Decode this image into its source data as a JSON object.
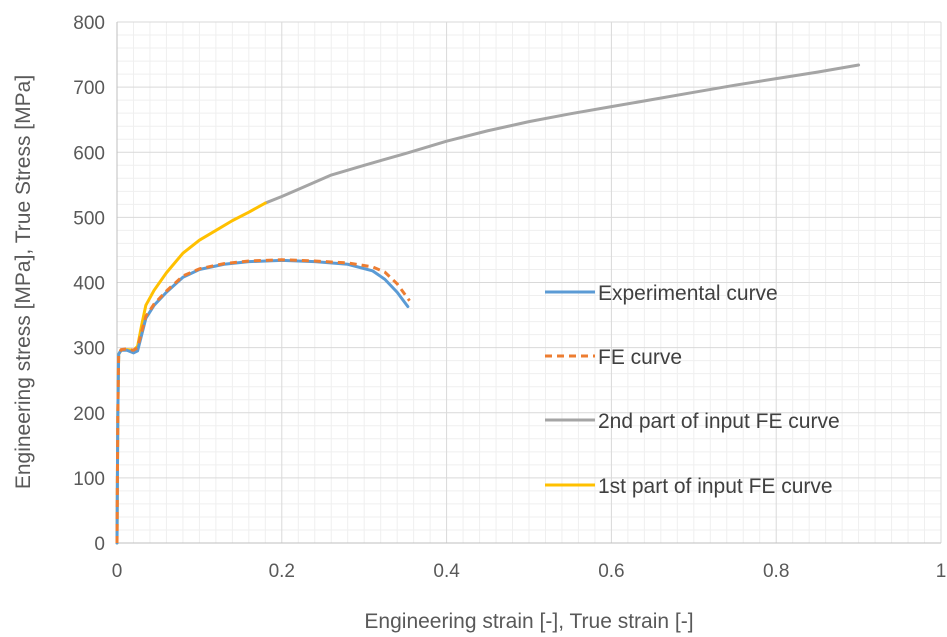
{
  "chart_data": {
    "type": "line",
    "title": "",
    "xlabel": "Engineering strain [-], True strain [-]",
    "ylabel": "Engineering stress [MPa], True Stress [MPa]",
    "xlim": [
      0,
      1
    ],
    "ylim": [
      0,
      800
    ],
    "x_ticks": [
      0,
      0.2,
      0.4,
      0.6,
      0.8,
      1
    ],
    "x_tick_labels": [
      "0",
      "0.2",
      "0.4",
      "0.6",
      "0.8",
      "1"
    ],
    "y_ticks": [
      0,
      100,
      200,
      300,
      400,
      500,
      600,
      700,
      800
    ],
    "y_tick_labels": [
      "0",
      "100",
      "200",
      "300",
      "400",
      "500",
      "600",
      "700",
      "800"
    ],
    "grid": {
      "major": true,
      "minor": true
    },
    "legend_position": "right-center",
    "series": [
      {
        "name": "Experimental curve",
        "color": "#5B9BD5",
        "style": "solid",
        "points": [
          [
            0,
            0
          ],
          [
            0.001,
            200
          ],
          [
            0.002,
            290
          ],
          [
            0.005,
            296
          ],
          [
            0.012,
            296
          ],
          [
            0.02,
            292
          ],
          [
            0.025,
            295
          ],
          [
            0.03,
            320
          ],
          [
            0.035,
            345
          ],
          [
            0.045,
            365
          ],
          [
            0.06,
            385
          ],
          [
            0.08,
            408
          ],
          [
            0.1,
            420
          ],
          [
            0.13,
            428
          ],
          [
            0.16,
            432
          ],
          [
            0.2,
            434
          ],
          [
            0.24,
            432
          ],
          [
            0.28,
            428
          ],
          [
            0.31,
            418
          ],
          [
            0.325,
            405
          ],
          [
            0.34,
            385
          ],
          [
            0.353,
            363
          ]
        ]
      },
      {
        "name": "FE curve",
        "color": "#ED7D31",
        "style": "dashed",
        "points": [
          [
            0,
            0
          ],
          [
            0.001,
            200
          ],
          [
            0.002,
            290
          ],
          [
            0.005,
            297
          ],
          [
            0.012,
            298
          ],
          [
            0.02,
            296
          ],
          [
            0.025,
            300
          ],
          [
            0.03,
            325
          ],
          [
            0.035,
            348
          ],
          [
            0.045,
            367
          ],
          [
            0.06,
            387
          ],
          [
            0.08,
            410
          ],
          [
            0.1,
            421
          ],
          [
            0.13,
            429
          ],
          [
            0.16,
            433
          ],
          [
            0.2,
            435
          ],
          [
            0.24,
            433
          ],
          [
            0.28,
            430
          ],
          [
            0.31,
            424
          ],
          [
            0.325,
            416
          ],
          [
            0.34,
            398
          ],
          [
            0.355,
            372
          ]
        ]
      },
      {
        "name": "2nd part of input FE curve",
        "color": "#A5A5A5",
        "style": "solid",
        "points": [
          [
            0.18,
            522
          ],
          [
            0.2,
            532
          ],
          [
            0.22,
            543
          ],
          [
            0.26,
            565
          ],
          [
            0.3,
            580
          ],
          [
            0.35,
            598
          ],
          [
            0.4,
            617
          ],
          [
            0.45,
            633
          ],
          [
            0.5,
            647
          ],
          [
            0.55,
            659
          ],
          [
            0.6,
            670
          ],
          [
            0.65,
            681
          ],
          [
            0.7,
            692
          ],
          [
            0.75,
            703
          ],
          [
            0.8,
            713
          ],
          [
            0.85,
            723
          ],
          [
            0.9,
            734
          ]
        ]
      },
      {
        "name": "1st part of input FE curve",
        "color": "#FFC000",
        "style": "solid",
        "points": [
          [
            0,
            0
          ],
          [
            0.001,
            200
          ],
          [
            0.002,
            290
          ],
          [
            0.005,
            296
          ],
          [
            0.012,
            297
          ],
          [
            0.02,
            296
          ],
          [
            0.025,
            302
          ],
          [
            0.03,
            335
          ],
          [
            0.035,
            365
          ],
          [
            0.045,
            388
          ],
          [
            0.06,
            415
          ],
          [
            0.08,
            445
          ],
          [
            0.1,
            465
          ],
          [
            0.12,
            480
          ],
          [
            0.14,
            495
          ],
          [
            0.16,
            508
          ],
          [
            0.18,
            522
          ]
        ]
      }
    ]
  }
}
